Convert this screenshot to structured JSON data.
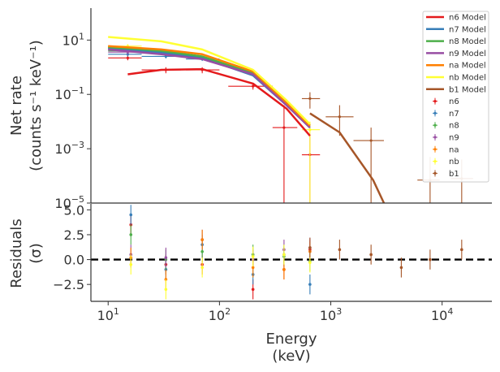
{
  "chart_data": {
    "type": "line",
    "xscale": "log",
    "xlabel_line1": "Energy",
    "xlabel_line2": "(keV)",
    "xlim": [
      7,
      28000
    ],
    "x_ticks": [
      {
        "value": 10,
        "base": "10",
        "exp": "1"
      },
      {
        "value": 100,
        "base": "10",
        "exp": "2"
      },
      {
        "value": 1000,
        "base": "10",
        "exp": "3"
      },
      {
        "value": 10000,
        "base": "10",
        "exp": "4"
      }
    ],
    "top_panel": {
      "ylabel_line1": "Net rate",
      "ylabel_line2": "(counts s⁻¹ keV⁻¹)",
      "yscale": "log",
      "ylim": [
        1e-05,
        150
      ],
      "y_ticks": [
        {
          "value": 10,
          "base": "10",
          "exp": "1"
        },
        {
          "value": 0.1,
          "base": "10",
          "exp": "−1"
        },
        {
          "value": 0.001,
          "base": "10",
          "exp": "−3"
        },
        {
          "value": 1e-05,
          "base": "10",
          "exp": "−5"
        }
      ],
      "models": [
        {
          "name": "n6 Model",
          "color": "#e41a1c",
          "x": [
            15,
            30,
            70,
            200,
            400,
            650
          ],
          "y": [
            0.55,
            0.8,
            0.85,
            0.25,
            0.03,
            0.003
          ]
        },
        {
          "name": "n7 Model",
          "color": "#377eb8",
          "x": [
            10,
            30,
            70,
            200,
            400,
            650
          ],
          "y": [
            5.0,
            3.5,
            2.2,
            0.5,
            0.04,
            0.006
          ]
        },
        {
          "name": "n8 Model",
          "color": "#4daf4a",
          "x": [
            10,
            30,
            70,
            200,
            400,
            650
          ],
          "y": [
            5.5,
            4.0,
            2.5,
            0.6,
            0.045,
            0.007
          ]
        },
        {
          "name": "n9 Model",
          "color": "#984ea3",
          "x": [
            10,
            30,
            70,
            200,
            400,
            650
          ],
          "y": [
            4.5,
            3.0,
            2.0,
            0.55,
            0.04,
            0.006
          ]
        },
        {
          "name": "na Model",
          "color": "#ff7f00",
          "x": [
            10,
            30,
            70,
            200,
            400,
            650
          ],
          "y": [
            6.0,
            4.5,
            3.0,
            0.7,
            0.05,
            0.007
          ]
        },
        {
          "name": "nb Model",
          "color": "#ffff33",
          "x": [
            10,
            30,
            70,
            200,
            400,
            650
          ],
          "y": [
            13,
            9,
            4.5,
            0.8,
            0.06,
            0.008
          ]
        },
        {
          "name": "b1 Model",
          "color": "#a65628",
          "x": [
            650,
            1200,
            2400,
            3000
          ],
          "y": [
            0.02,
            0.004,
            7e-05,
            1e-05
          ]
        }
      ],
      "data": [
        {
          "name": "n6",
          "color": "#e41a1c",
          "points": [
            {
              "x": 15,
              "xerr": [
                10,
                20
              ],
              "y": 2.2,
              "yerr": [
                1.8,
                2.7
              ]
            },
            {
              "x": 33,
              "xerr": [
                20,
                45
              ],
              "y": 0.8,
              "yerr": [
                0.6,
                1.0
              ]
            },
            {
              "x": 70,
              "xerr": [
                50,
                100
              ],
              "y": 0.8,
              "yerr": [
                0.6,
                1.0
              ]
            },
            {
              "x": 200,
              "xerr": [
                120,
                300
              ],
              "y": 0.2,
              "yerr": [
                0.15,
                0.26
              ]
            },
            {
              "x": 380,
              "xerr": [
                300,
                500
              ],
              "y": 0.006,
              "yerr": [
                1e-05,
                0.04
              ]
            },
            {
              "x": 650,
              "xerr": [
                550,
                800
              ],
              "y": 0.0006,
              "yerr": [
                1e-05,
                0.003
              ]
            }
          ]
        },
        {
          "name": "n7",
          "color": "#377eb8",
          "points": [
            {
              "x": 15,
              "xerr": [
                10,
                20
              ],
              "y": 3.0,
              "yerr": [
                2.5,
                3.6
              ]
            },
            {
              "x": 33,
              "xerr": [
                20,
                45
              ],
              "y": 2.5,
              "yerr": [
                2.1,
                3.0
              ]
            },
            {
              "x": 70,
              "xerr": [
                50,
                100
              ],
              "y": 2.0,
              "yerr": [
                1.7,
                2.4
              ]
            }
          ]
        },
        {
          "name": "n8",
          "color": "#4daf4a",
          "points": [
            {
              "x": 15,
              "xerr": [
                10,
                20
              ],
              "y": 4.0,
              "yerr": [
                3.4,
                4.7
              ]
            }
          ]
        },
        {
          "name": "n9",
          "color": "#984ea3",
          "points": [
            {
              "x": 15,
              "xerr": [
                10,
                20
              ],
              "y": 3.6,
              "yerr": [
                3.0,
                4.2
              ]
            }
          ]
        },
        {
          "name": "na",
          "color": "#ff7f00",
          "points": [
            {
              "x": 15,
              "xerr": [
                10,
                20
              ],
              "y": 5.0,
              "yerr": [
                4.3,
                5.8
              ]
            }
          ]
        },
        {
          "name": "nb",
          "color": "#ffff33",
          "points": [
            {
              "x": 15,
              "xerr": [
                10,
                20
              ],
              "y": 6.0,
              "yerr": [
                5.2,
                7.0
              ]
            },
            {
              "x": 650,
              "xerr": [
                550,
                800
              ],
              "y": 0.005,
              "yerr": [
                1e-05,
                0.01
              ]
            }
          ]
        },
        {
          "name": "b1",
          "color": "#a65628",
          "points": [
            {
              "x": 650,
              "xerr": [
                550,
                800
              ],
              "y": 0.07,
              "yerr": [
                0.03,
                0.12
              ]
            },
            {
              "x": 1200,
              "xerr": [
                900,
                1600
              ],
              "y": 0.015,
              "yerr": [
                0.003,
                0.04
              ]
            },
            {
              "x": 2300,
              "xerr": [
                1600,
                3000
              ],
              "y": 0.002,
              "yerr": [
                1e-05,
                0.006
              ]
            },
            {
              "x": 7800,
              "xerr": [
                6000,
                9500
              ],
              "y": 7e-05,
              "yerr": [
                1e-05,
                0.0005
              ]
            },
            {
              "x": 15000,
              "xerr": [
                12000,
                19000
              ],
              "y": 8e-05,
              "yerr": [
                1e-05,
                0.0004
              ]
            }
          ]
        }
      ]
    },
    "bottom_panel": {
      "ylabel_line1": "Residuals",
      "ylabel_line2": "(σ)",
      "ylim": [
        -4.2,
        5.6
      ],
      "y_ticks": [
        {
          "value": 5.0,
          "label": "5.0"
        },
        {
          "value": 2.5,
          "label": "2.5"
        },
        {
          "value": 0.0,
          "label": "0.0"
        },
        {
          "value": -2.5,
          "label": "−2.5"
        }
      ],
      "zero_line": 0,
      "residuals": [
        {
          "name": "n6",
          "color": "#e41a1c",
          "points": [
            {
              "x": 16,
              "y": 3.5,
              "err": 1
            },
            {
              "x": 33,
              "y": -0.5,
              "err": 1
            },
            {
              "x": 70,
              "y": -0.5,
              "err": 1
            },
            {
              "x": 200,
              "y": -3.0,
              "err": 1
            },
            {
              "x": 380,
              "y": -1.0,
              "err": 1
            },
            {
              "x": 650,
              "y": 1.0,
              "err": 1
            }
          ]
        },
        {
          "name": "n7",
          "color": "#377eb8",
          "points": [
            {
              "x": 16,
              "y": 4.5,
              "err": 1
            },
            {
              "x": 33,
              "y": -1.0,
              "err": 1
            },
            {
              "x": 70,
              "y": 1.5,
              "err": 1
            },
            {
              "x": 200,
              "y": -1.5,
              "err": 1
            },
            {
              "x": 380,
              "y": 0.5,
              "err": 1
            },
            {
              "x": 650,
              "y": -2.5,
              "err": 1
            }
          ]
        },
        {
          "name": "n8",
          "color": "#4daf4a",
          "points": [
            {
              "x": 16,
              "y": 2.5,
              "err": 1
            },
            {
              "x": 33,
              "y": 0.0,
              "err": 1
            },
            {
              "x": 70,
              "y": 0.8,
              "err": 1
            },
            {
              "x": 200,
              "y": 0.5,
              "err": 1
            },
            {
              "x": 380,
              "y": 0.3,
              "err": 1
            },
            {
              "x": 650,
              "y": -0.2,
              "err": 1
            }
          ]
        },
        {
          "name": "n9",
          "color": "#984ea3",
          "points": [
            {
              "x": 16,
              "y": 0.5,
              "err": 1
            },
            {
              "x": 33,
              "y": 0.2,
              "err": 1
            },
            {
              "x": 70,
              "y": 2.0,
              "err": 1
            },
            {
              "x": 200,
              "y": 0.0,
              "err": 1
            },
            {
              "x": 380,
              "y": 1.0,
              "err": 1
            },
            {
              "x": 650,
              "y": 1.2,
              "err": 1
            }
          ]
        },
        {
          "name": "na",
          "color": "#ff7f00",
          "points": [
            {
              "x": 16,
              "y": 0.2,
              "err": 1
            },
            {
              "x": 33,
              "y": -2.0,
              "err": 1
            },
            {
              "x": 70,
              "y": 2.0,
              "err": 1
            },
            {
              "x": 200,
              "y": -0.8,
              "err": 1
            },
            {
              "x": 380,
              "y": -1.0,
              "err": 1
            },
            {
              "x": 650,
              "y": 0.8,
              "err": 1
            }
          ]
        },
        {
          "name": "nb",
          "color": "#ffff33",
          "points": [
            {
              "x": 16,
              "y": -0.5,
              "err": 1
            },
            {
              "x": 33,
              "y": -3.0,
              "err": 1
            },
            {
              "x": 70,
              "y": -0.8,
              "err": 1
            },
            {
              "x": 200,
              "y": 0.3,
              "err": 1
            },
            {
              "x": 380,
              "y": 0.5,
              "err": 1
            },
            {
              "x": 650,
              "y": -0.3,
              "err": 1
            }
          ]
        },
        {
          "name": "b1",
          "color": "#a65628",
          "points": [
            {
              "x": 650,
              "y": 1.2,
              "err": 1
            },
            {
              "x": 1200,
              "y": 1.0,
              "err": 1
            },
            {
              "x": 2300,
              "y": 0.5,
              "err": 1
            },
            {
              "x": 4300,
              "y": -0.8,
              "err": 1
            },
            {
              "x": 7800,
              "y": 0.0,
              "err": 1
            },
            {
              "x": 15000,
              "y": 1.0,
              "err": 1
            }
          ]
        }
      ]
    },
    "legend": {
      "placement": "top-right",
      "models": [
        "n6 Model",
        "n7 Model",
        "n8 Model",
        "n9 Model",
        "na Model",
        "nb Model",
        "b1 Model"
      ],
      "data": [
        "n6",
        "n7",
        "n8",
        "n9",
        "na",
        "nb",
        "b1"
      ]
    }
  }
}
